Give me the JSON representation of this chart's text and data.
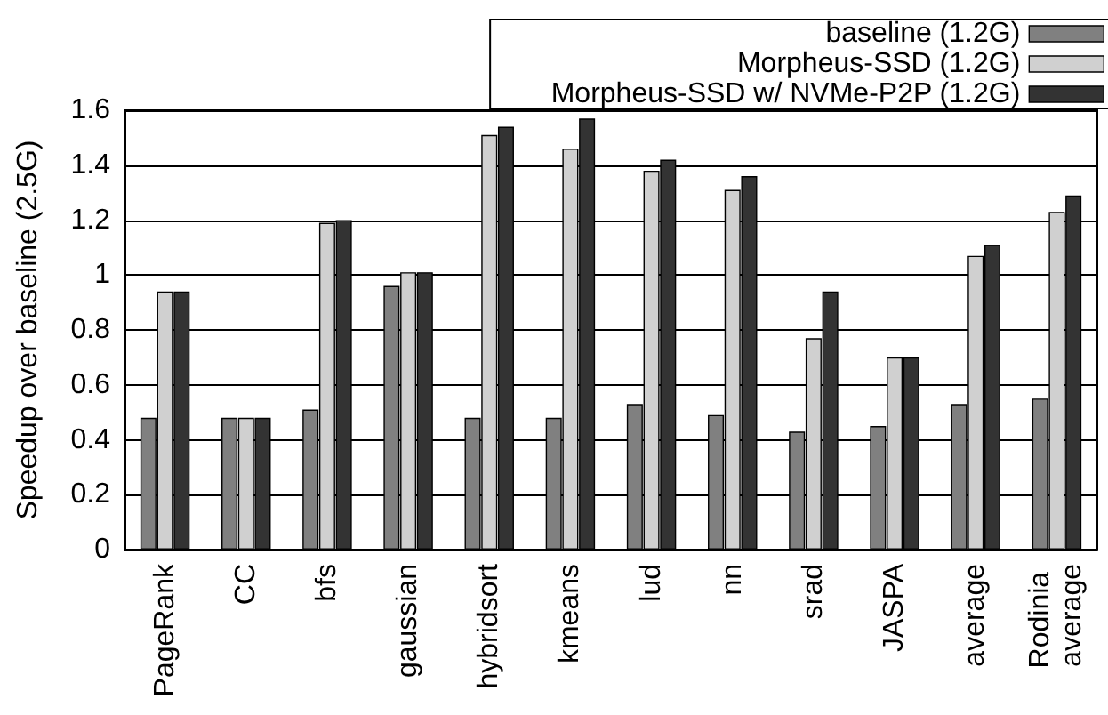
{
  "chart_data": {
    "type": "bar",
    "ylabel": "Speedup over baseline (2.5G)",
    "categories": [
      "PageRank",
      "CC",
      "bfs",
      "gaussian",
      "hybridsort",
      "kmeans",
      "lud",
      "nn",
      "srad",
      "JASPA",
      "average",
      "Rodinia average"
    ],
    "series": [
      {
        "name": "baseline (1.2G)",
        "color": "#808080",
        "values": [
          0.48,
          0.48,
          0.51,
          0.96,
          0.48,
          0.48,
          0.53,
          0.49,
          0.43,
          0.45,
          0.53,
          0.55
        ]
      },
      {
        "name": "Morpheus-SSD (1.2G)",
        "color": "#d0d0d0",
        "values": [
          0.94,
          0.48,
          1.19,
          1.01,
          1.51,
          1.46,
          1.38,
          1.31,
          0.77,
          0.7,
          1.07,
          1.23
        ]
      },
      {
        "name": "Morpheus-SSD w/ NVMe-P2P (1.2G)",
        "color": "#333333",
        "values": [
          0.94,
          0.48,
          1.2,
          1.01,
          1.54,
          1.57,
          1.42,
          1.36,
          0.94,
          0.7,
          1.11,
          1.29
        ]
      }
    ],
    "ylim": [
      0,
      1.6
    ],
    "yticks": [
      0,
      0.2,
      0.4,
      0.6,
      0.8,
      1,
      1.2,
      1.4,
      1.6
    ],
    "grid": "y",
    "legend": "top right"
  }
}
